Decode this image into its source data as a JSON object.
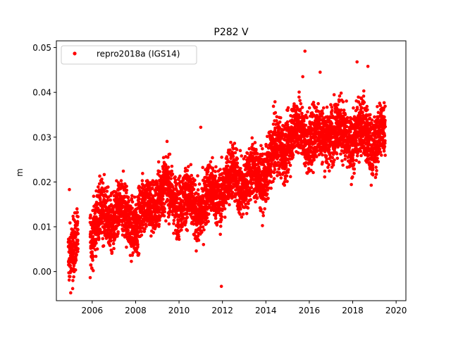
{
  "chart_data": {
    "type": "scatter",
    "title": "P282 V",
    "xlabel": "",
    "ylabel": "m",
    "xlim": [
      2004.35,
      2020.45
    ],
    "ylim": [
      -0.0065,
      0.0515
    ],
    "xticks": [
      2006,
      2008,
      2010,
      2012,
      2014,
      2016,
      2018,
      2020
    ],
    "yticks": [
      0.0,
      0.01,
      0.02,
      0.03,
      0.04,
      0.05
    ],
    "ytick_labels": [
      "0.00",
      "0.01",
      "0.02",
      "0.03",
      "0.04",
      "0.05"
    ],
    "grid": false,
    "legend_position": "top-left",
    "series": [
      {
        "name": "repro2018a (IGS14)",
        "color": "#ff0000",
        "marker": "circle",
        "x_start": 2004.9,
        "x_end": 2019.5,
        "x_gap": [
          2005.35,
          2005.9
        ],
        "trend_x": [
          2004.9,
          2005.3,
          2006.0,
          2007.0,
          2008.0,
          2009.0,
          2010.0,
          2011.0,
          2012.0,
          2013.0,
          2014.0,
          2015.0,
          2015.7,
          2016.5,
          2017.0,
          2017.5,
          2018.0,
          2018.5,
          2019.0,
          2019.5
        ],
        "trend_y": [
          0.006,
          0.007,
          0.01,
          0.0115,
          0.013,
          0.0165,
          0.0155,
          0.016,
          0.0175,
          0.021,
          0.0235,
          0.028,
          0.032,
          0.031,
          0.032,
          0.0285,
          0.029,
          0.032,
          0.031,
          0.031
        ],
        "spread": 0.0032,
        "outliers": [
          {
            "x": 2015.8,
            "y": 0.0492
          },
          {
            "x": 2018.2,
            "y": 0.0468
          },
          {
            "x": 2018.7,
            "y": 0.0458
          },
          {
            "x": 2011.0,
            "y": 0.0322
          },
          {
            "x": 2011.95,
            "y": -0.0033
          },
          {
            "x": 2005.1,
            "y": -0.0038
          },
          {
            "x": 2015.7,
            "y": 0.0435
          },
          {
            "x": 2016.5,
            "y": 0.0445
          },
          {
            "x": 2004.95,
            "y": 0.0183
          }
        ]
      }
    ]
  }
}
